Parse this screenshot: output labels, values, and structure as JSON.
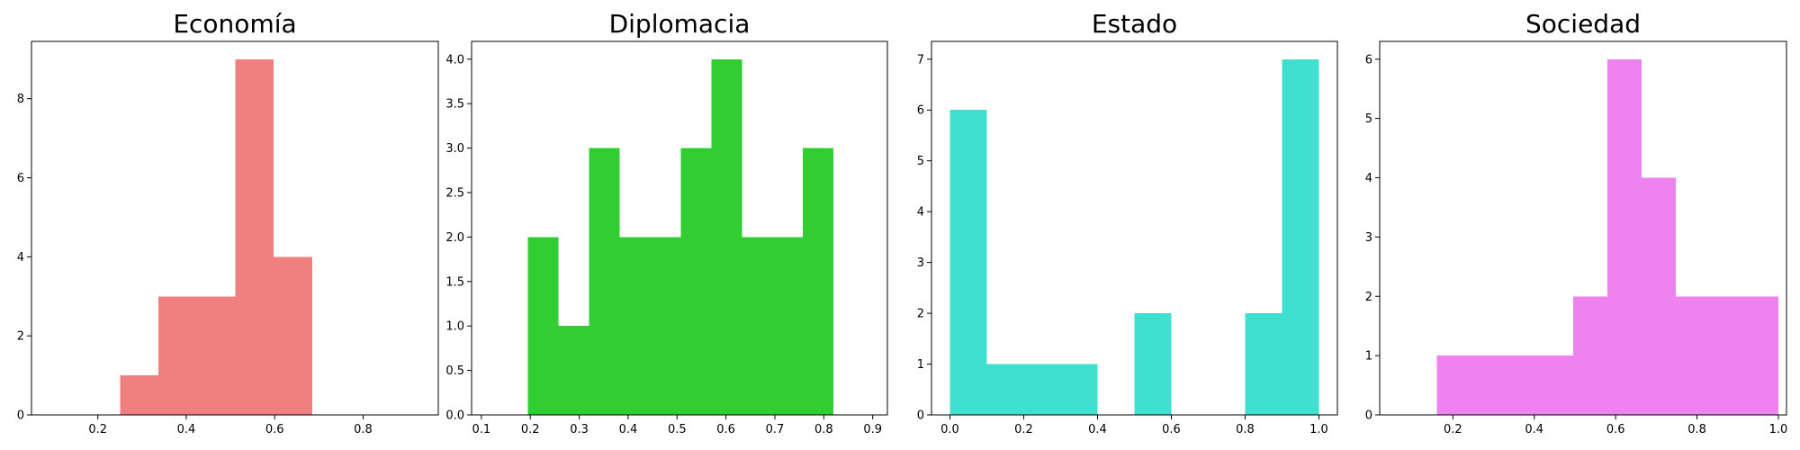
{
  "chart_data": [
    {
      "type": "bar",
      "title": "Economía",
      "color": "#f08080",
      "xlim": [
        0.05,
        0.97
      ],
      "ylim": [
        0,
        9.45
      ],
      "xticks": [
        0.2,
        0.4,
        0.6,
        0.8
      ],
      "xtick_labels": [
        "0.2",
        "0.4",
        "0.6",
        "0.8"
      ],
      "yticks": [
        0,
        2,
        4,
        6,
        8
      ],
      "ytick_labels": [
        "0",
        "2",
        "4",
        "6",
        "8"
      ],
      "bins": [
        {
          "x0": 0.25,
          "x1": 0.337,
          "value": 1
        },
        {
          "x0": 0.337,
          "x1": 0.424,
          "value": 3
        },
        {
          "x0": 0.424,
          "x1": 0.511,
          "value": 3
        },
        {
          "x0": 0.511,
          "x1": 0.598,
          "value": 9
        },
        {
          "x0": 0.598,
          "x1": 0.685,
          "value": 4
        }
      ]
    },
    {
      "type": "bar",
      "title": "Diplomacia",
      "color": "#32cd32",
      "xlim": [
        0.08,
        0.93
      ],
      "ylim": [
        0,
        4.2
      ],
      "xticks": [
        0.1,
        0.2,
        0.3,
        0.4,
        0.5,
        0.6,
        0.7,
        0.8,
        0.9
      ],
      "xtick_labels": [
        "0.1",
        "0.2",
        "0.3",
        "0.4",
        "0.5",
        "0.6",
        "0.7",
        "0.8",
        "0.9"
      ],
      "yticks": [
        0,
        0.5,
        1.0,
        1.5,
        2.0,
        2.5,
        3.0,
        3.5,
        4.0
      ],
      "ytick_labels": [
        "0.0",
        "0.5",
        "1.0",
        "1.5",
        "2.0",
        "2.5",
        "3.0",
        "3.5",
        "4.0"
      ],
      "bins": [
        {
          "x0": 0.195,
          "x1": 0.2575,
          "value": 2
        },
        {
          "x0": 0.2575,
          "x1": 0.32,
          "value": 1
        },
        {
          "x0": 0.32,
          "x1": 0.3825,
          "value": 3
        },
        {
          "x0": 0.3825,
          "x1": 0.445,
          "value": 2
        },
        {
          "x0": 0.445,
          "x1": 0.5075,
          "value": 2
        },
        {
          "x0": 0.5075,
          "x1": 0.57,
          "value": 3
        },
        {
          "x0": 0.57,
          "x1": 0.6325,
          "value": 4
        },
        {
          "x0": 0.6325,
          "x1": 0.695,
          "value": 2
        },
        {
          "x0": 0.695,
          "x1": 0.7575,
          "value": 2
        },
        {
          "x0": 0.7575,
          "x1": 0.82,
          "value": 3
        }
      ]
    },
    {
      "type": "bar",
      "title": "Estado",
      "color": "#40e0d0",
      "xlim": [
        -0.05,
        1.05
      ],
      "ylim": [
        0,
        7.35
      ],
      "xticks": [
        0.0,
        0.2,
        0.4,
        0.6,
        0.8,
        1.0
      ],
      "xtick_labels": [
        "0.0",
        "0.2",
        "0.4",
        "0.6",
        "0.8",
        "1.0"
      ],
      "yticks": [
        0,
        1,
        2,
        3,
        4,
        5,
        6,
        7
      ],
      "ytick_labels": [
        "0",
        "1",
        "2",
        "3",
        "4",
        "5",
        "6",
        "7"
      ],
      "bins": [
        {
          "x0": 0.0,
          "x1": 0.1,
          "value": 6
        },
        {
          "x0": 0.1,
          "x1": 0.2,
          "value": 1
        },
        {
          "x0": 0.2,
          "x1": 0.3,
          "value": 1
        },
        {
          "x0": 0.3,
          "x1": 0.4,
          "value": 1
        },
        {
          "x0": 0.4,
          "x1": 0.5,
          "value": 0
        },
        {
          "x0": 0.5,
          "x1": 0.6,
          "value": 2
        },
        {
          "x0": 0.6,
          "x1": 0.7,
          "value": 0
        },
        {
          "x0": 0.7,
          "x1": 0.8,
          "value": 0
        },
        {
          "x0": 0.8,
          "x1": 0.9,
          "value": 2
        },
        {
          "x0": 0.9,
          "x1": 1.0,
          "value": 7
        }
      ]
    },
    {
      "type": "bar",
      "title": "Sociedad",
      "color": "#ee82ee",
      "xlim": [
        0.02,
        1.02
      ],
      "ylim": [
        0,
        6.3
      ],
      "xticks": [
        0.2,
        0.4,
        0.6,
        0.8,
        1.0
      ],
      "xtick_labels": [
        "0.2",
        "0.4",
        "0.6",
        "0.8",
        "1.0"
      ],
      "yticks": [
        0,
        1,
        2,
        3,
        4,
        5,
        6
      ],
      "ytick_labels": [
        "0",
        "1",
        "2",
        "3",
        "4",
        "5",
        "6"
      ],
      "bins": [
        {
          "x0": 0.16,
          "x1": 0.244,
          "value": 1
        },
        {
          "x0": 0.244,
          "x1": 0.328,
          "value": 1
        },
        {
          "x0": 0.328,
          "x1": 0.412,
          "value": 1
        },
        {
          "x0": 0.412,
          "x1": 0.496,
          "value": 1
        },
        {
          "x0": 0.496,
          "x1": 0.58,
          "value": 2
        },
        {
          "x0": 0.58,
          "x1": 0.664,
          "value": 6
        },
        {
          "x0": 0.664,
          "x1": 0.748,
          "value": 4
        },
        {
          "x0": 0.748,
          "x1": 0.832,
          "value": 2
        },
        {
          "x0": 0.832,
          "x1": 0.916,
          "value": 2
        },
        {
          "x0": 0.916,
          "x1": 1.0,
          "value": 2
        }
      ]
    }
  ]
}
